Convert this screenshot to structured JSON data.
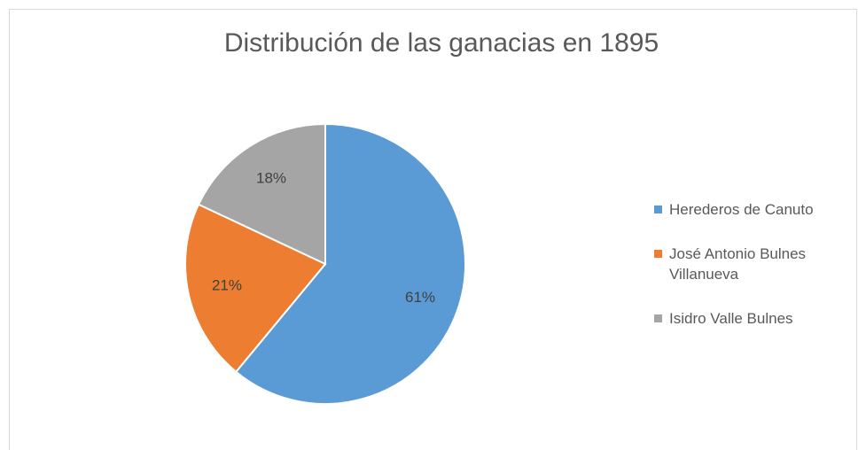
{
  "chart_data": {
    "type": "pie",
    "title": "Distribución de las ganacias en 1895",
    "categories": [
      "Herederos de Canuto",
      "José Antonio Bulnes Villanueva",
      "Isidro Valle Bulnes"
    ],
    "values": [
      61,
      21,
      18
    ],
    "value_labels": [
      "61%",
      "21%",
      "18%"
    ],
    "colors": [
      "#5b9bd5",
      "#ed7d31",
      "#a5a5a5"
    ],
    "legend": "right"
  }
}
